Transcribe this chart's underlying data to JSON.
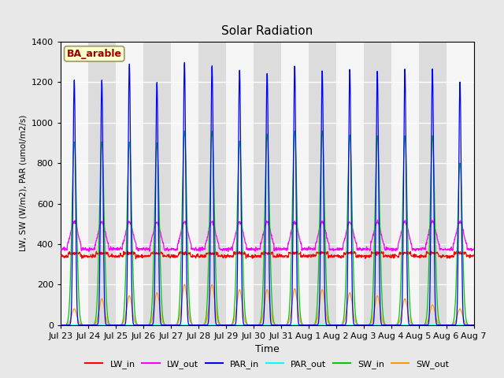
{
  "title": "Solar Radiation",
  "xlabel": "Time",
  "ylabel": "LW, SW (W/m2), PAR (umol/m2/s)",
  "annotation": "BA_arable",
  "ylim": [
    0,
    1400
  ],
  "yticks": [
    0,
    200,
    400,
    600,
    800,
    1000,
    1200,
    1400
  ],
  "x_tick_labels": [
    "Jul 23",
    "Jul 24",
    "Jul 25",
    "Jul 26",
    "Jul 27",
    "Jul 28",
    "Jul 29",
    "Jul 30",
    "Jul 31",
    "Aug 1",
    "Aug 2",
    "Aug 3",
    "Aug 4",
    "Aug 5",
    "Aug 6",
    "Aug 7"
  ],
  "n_days": 15,
  "LW_in_color": "#ff0000",
  "LW_out_color": "#ff00ff",
  "PAR_in_color": "#0000ff",
  "PAR_out_color": "#00ffff",
  "SW_in_color": "#00cc00",
  "SW_out_color": "#ff9900",
  "fig_bg_color": "#e8e8e8",
  "plot_bg_color": "#e8e8e8",
  "band_light": "#f5f5f5",
  "band_dark": "#dcdcdc",
  "grid_color": "#ffffff",
  "n_points_per_day": 96
}
